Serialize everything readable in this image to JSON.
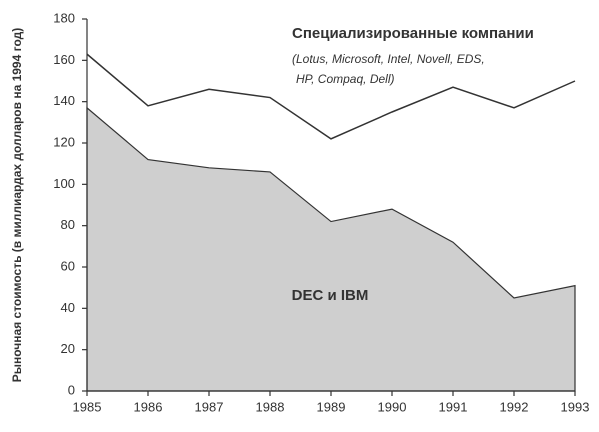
{
  "chart_data": {
    "type": "area",
    "y_label": "Рыночная стоимость (в миллиардах долларов на 1994 год)",
    "x": [
      1985,
      1986,
      1987,
      1988,
      1989,
      1990,
      1991,
      1992,
      1993
    ],
    "xlim": [
      1985,
      1993
    ],
    "xticks": [
      1985,
      1986,
      1987,
      1988,
      1989,
      1990,
      1991,
      1992,
      1993
    ],
    "ylim": [
      0,
      180
    ],
    "yticks": [
      0,
      20,
      40,
      60,
      80,
      100,
      120,
      140,
      160,
      180
    ],
    "grid": false,
    "series": [
      {
        "name": "Специализированные компании",
        "style": "line",
        "color": "#333333",
        "values": [
          163,
          138,
          146,
          142,
          122,
          135,
          147,
          137,
          150
        ]
      },
      {
        "name": "DEC и IBM",
        "style": "area",
        "color": "#cfcfcf",
        "values": [
          137,
          112,
          108,
          106,
          82,
          88,
          72,
          45,
          51
        ]
      }
    ],
    "annotations": [
      "(Lotus, Microsoft, Intel, Novell, EDS,",
      "HP, Compaq, Dell)"
    ]
  }
}
